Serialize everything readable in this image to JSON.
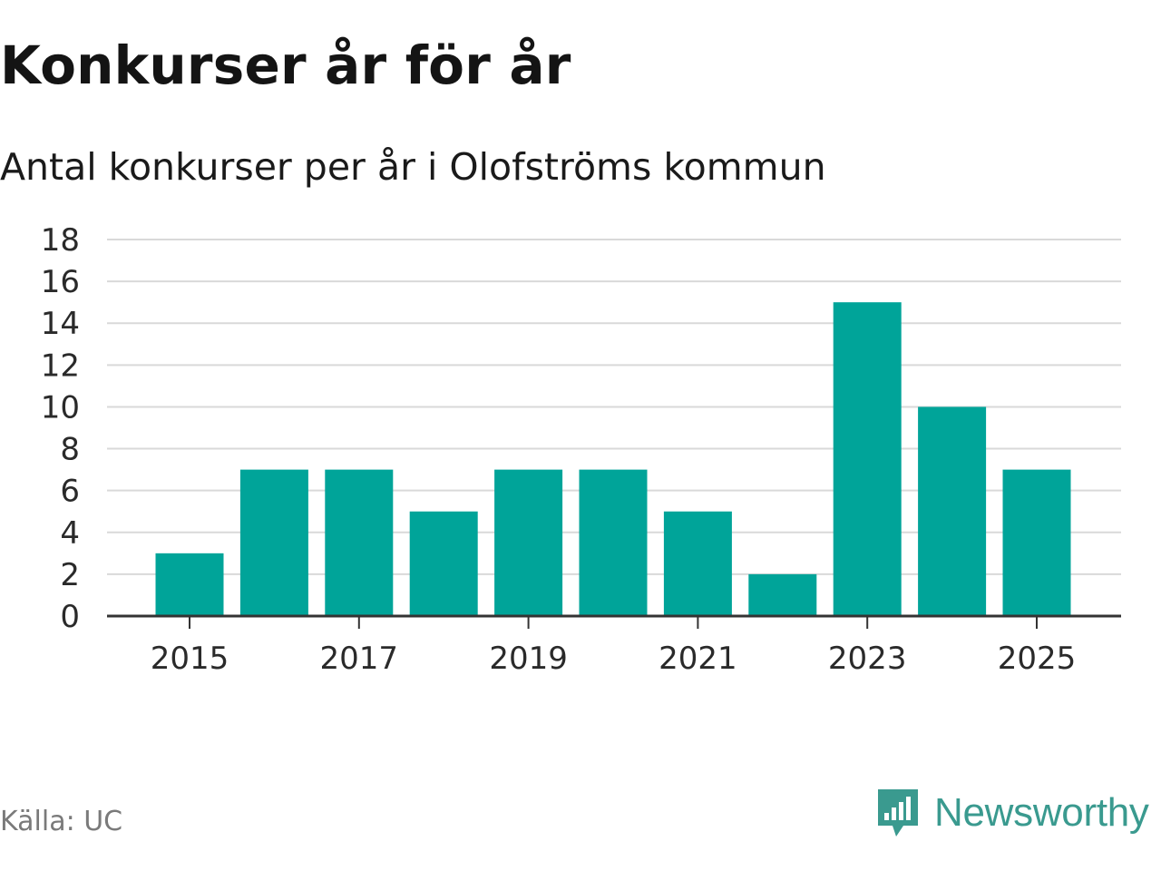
{
  "colors": {
    "bar": "#00a499",
    "gridline": "#d9d9d9",
    "axis": "#333333",
    "brand": "#3a9a8f"
  },
  "chart_data": {
    "type": "bar",
    "title": "Konkurser år för år",
    "subtitle": "Antal konkurser per år i Olofströms kommun",
    "xlabel": "",
    "ylabel": "",
    "categories": [
      "2015",
      "2016",
      "2017",
      "2018",
      "2019",
      "2020",
      "2021",
      "2022",
      "2023",
      "2024",
      "2025"
    ],
    "values": [
      3,
      7,
      7,
      5,
      7,
      7,
      5,
      2,
      15,
      10,
      7
    ],
    "x_tick_labels": [
      "2015",
      "2017",
      "2019",
      "2021",
      "2023",
      "2025"
    ],
    "y_ticks": [
      0,
      2,
      4,
      6,
      8,
      10,
      12,
      14,
      16,
      18
    ],
    "ylim": [
      0,
      18
    ],
    "grid": true
  },
  "footer": {
    "source": "Källa: UC",
    "brand_name": "Newsworthy",
    "brand_icon": "newsworthy-logo-icon"
  }
}
